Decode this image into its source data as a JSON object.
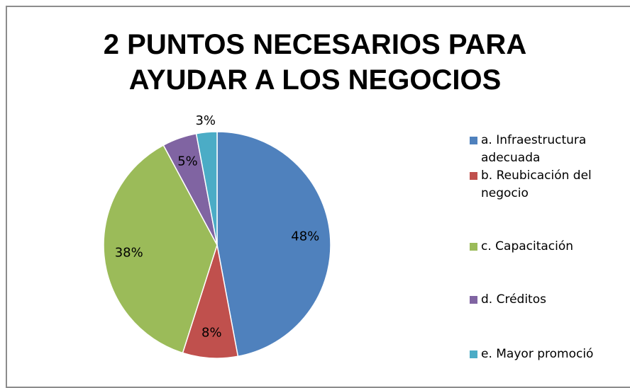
{
  "chart_data": {
    "type": "pie",
    "title": "2 PUNTOS NECESARIOS PARA AYUDAR A LOS NEGOCIOS",
    "categories": [
      "a. Infraestructura adecuada",
      "b. Reubicación del negocio",
      "c. Capacitación",
      "d. Créditos",
      "e. Mayor promoció"
    ],
    "values": [
      48,
      8,
      38,
      5,
      3
    ],
    "value_labels": [
      "48%",
      "8%",
      "38%",
      "5%",
      "3%"
    ],
    "colors": [
      "#4f81bd",
      "#c0504d",
      "#9bbb59",
      "#8064a2",
      "#4bacc6"
    ],
    "legend": "right"
  }
}
